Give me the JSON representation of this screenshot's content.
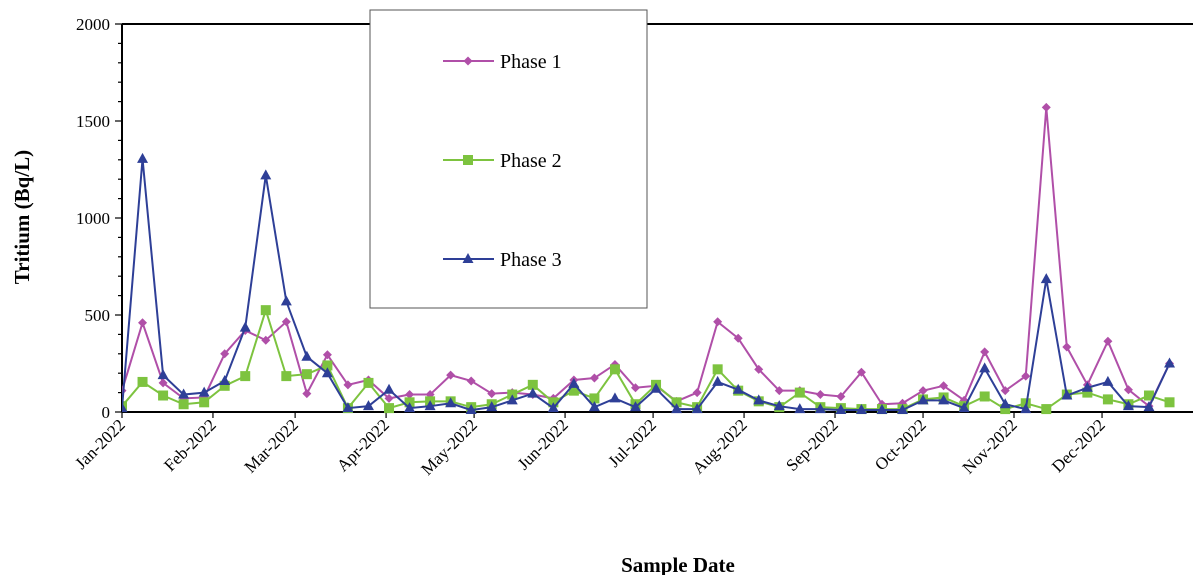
{
  "chart_data": {
    "type": "line",
    "xlabel": "Sample Date",
    "ylabel": "Tritium (Bq/L)",
    "ylim": [
      0,
      2000
    ],
    "y_ticks": [
      "0",
      "500",
      "1000",
      "1500",
      "2000"
    ],
    "x_tick_labels": [
      "Jan-2022",
      "Feb-2022",
      "Mar-2022",
      "Apr-2022",
      "May-2022",
      "Jun-2022",
      "Jul-2022",
      "Aug-2022",
      "Sep-2022",
      "Oct-2022",
      "Nov-2022",
      "Dec-2022"
    ],
    "x_range": [
      "2022-01-01",
      "2022-12-31"
    ],
    "grid": false,
    "legend_position": "top-center",
    "series": [
      {
        "name": "Phase 1",
        "color": "#b04fa8",
        "marker": "diamond",
        "points": [
          [
            "2022-01-01",
            110
          ],
          [
            "2022-01-08",
            460
          ],
          [
            "2022-01-15",
            150
          ],
          [
            "2022-01-22",
            70
          ],
          [
            "2022-01-29",
            75
          ],
          [
            "2022-02-05",
            300
          ],
          [
            "2022-02-12",
            420
          ],
          [
            "2022-02-19",
            370
          ],
          [
            "2022-02-26",
            465
          ],
          [
            "2022-03-05",
            95
          ],
          [
            "2022-03-12",
            295
          ],
          [
            "2022-03-19",
            140
          ],
          [
            "2022-03-26",
            165
          ],
          [
            "2022-04-02",
            70
          ],
          [
            "2022-04-09",
            90
          ],
          [
            "2022-04-16",
            90
          ],
          [
            "2022-04-23",
            190
          ],
          [
            "2022-04-30",
            160
          ],
          [
            "2022-05-07",
            95
          ],
          [
            "2022-05-14",
            100
          ],
          [
            "2022-05-21",
            90
          ],
          [
            "2022-05-28",
            70
          ],
          [
            "2022-06-04",
            165
          ],
          [
            "2022-06-11",
            175
          ],
          [
            "2022-06-18",
            245
          ],
          [
            "2022-06-25",
            125
          ],
          [
            "2022-07-02",
            135
          ],
          [
            "2022-07-09",
            55
          ],
          [
            "2022-07-16",
            100
          ],
          [
            "2022-07-23",
            465
          ],
          [
            "2022-07-30",
            380
          ],
          [
            "2022-08-06",
            220
          ],
          [
            "2022-08-13",
            110
          ],
          [
            "2022-08-20",
            110
          ],
          [
            "2022-08-27",
            90
          ],
          [
            "2022-09-03",
            80
          ],
          [
            "2022-09-10",
            205
          ],
          [
            "2022-09-17",
            40
          ],
          [
            "2022-09-24",
            45
          ],
          [
            "2022-10-01",
            110
          ],
          [
            "2022-10-08",
            135
          ],
          [
            "2022-10-15",
            60
          ],
          [
            "2022-10-22",
            310
          ],
          [
            "2022-10-29",
            110
          ],
          [
            "2022-11-05",
            185
          ],
          [
            "2022-11-12",
            1570
          ],
          [
            "2022-11-19",
            335
          ],
          [
            "2022-11-26",
            140
          ],
          [
            "2022-12-03",
            365
          ],
          [
            "2022-12-10",
            115
          ],
          [
            "2022-12-17",
            30
          ],
          [
            "2022-12-24",
            250
          ]
        ]
      },
      {
        "name": "Phase 2",
        "color": "#7dc33f",
        "marker": "square",
        "points": [
          [
            "2022-01-01",
            30
          ],
          [
            "2022-01-08",
            155
          ],
          [
            "2022-01-15",
            85
          ],
          [
            "2022-01-22",
            40
          ],
          [
            "2022-01-29",
            50
          ],
          [
            "2022-02-05",
            135
          ],
          [
            "2022-02-12",
            185
          ],
          [
            "2022-02-19",
            525
          ],
          [
            "2022-02-26",
            185
          ],
          [
            "2022-03-05",
            195
          ],
          [
            "2022-03-12",
            240
          ],
          [
            "2022-03-19",
            20
          ],
          [
            "2022-03-26",
            150
          ],
          [
            "2022-04-02",
            20
          ],
          [
            "2022-04-09",
            50
          ],
          [
            "2022-04-16",
            55
          ],
          [
            "2022-04-23",
            55
          ],
          [
            "2022-04-30",
            25
          ],
          [
            "2022-05-07",
            40
          ],
          [
            "2022-05-14",
            90
          ],
          [
            "2022-05-21",
            140
          ],
          [
            "2022-05-28",
            50
          ],
          [
            "2022-06-04",
            110
          ],
          [
            "2022-06-11",
            70
          ],
          [
            "2022-06-18",
            220
          ],
          [
            "2022-06-25",
            40
          ],
          [
            "2022-07-02",
            140
          ],
          [
            "2022-07-09",
            50
          ],
          [
            "2022-07-16",
            25
          ],
          [
            "2022-07-23",
            220
          ],
          [
            "2022-07-30",
            110
          ],
          [
            "2022-08-06",
            55
          ],
          [
            "2022-08-13",
            25
          ],
          [
            "2022-08-20",
            100
          ],
          [
            "2022-08-27",
            25
          ],
          [
            "2022-09-03",
            20
          ],
          [
            "2022-09-10",
            15
          ],
          [
            "2022-09-17",
            15
          ],
          [
            "2022-09-24",
            15
          ],
          [
            "2022-10-01",
            65
          ],
          [
            "2022-10-08",
            75
          ],
          [
            "2022-10-15",
            30
          ],
          [
            "2022-10-22",
            80
          ],
          [
            "2022-10-29",
            15
          ],
          [
            "2022-11-05",
            45
          ],
          [
            "2022-11-12",
            15
          ],
          [
            "2022-11-19",
            90
          ],
          [
            "2022-11-26",
            100
          ],
          [
            "2022-12-03",
            65
          ],
          [
            "2022-12-10",
            40
          ],
          [
            "2022-12-17",
            85
          ],
          [
            "2022-12-24",
            50
          ]
        ]
      },
      {
        "name": "Phase 3",
        "color": "#2e3f97",
        "marker": "triangle",
        "points": [
          [
            "2022-01-01",
            20
          ],
          [
            "2022-01-08",
            1305
          ],
          [
            "2022-01-15",
            190
          ],
          [
            "2022-01-22",
            90
          ],
          [
            "2022-01-29",
            100
          ],
          [
            "2022-02-05",
            160
          ],
          [
            "2022-02-12",
            435
          ],
          [
            "2022-02-19",
            1220
          ],
          [
            "2022-02-26",
            570
          ],
          [
            "2022-03-05",
            285
          ],
          [
            "2022-03-12",
            200
          ],
          [
            "2022-03-19",
            20
          ],
          [
            "2022-03-26",
            30
          ],
          [
            "2022-04-02",
            115
          ],
          [
            "2022-04-09",
            20
          ],
          [
            "2022-04-16",
            30
          ],
          [
            "2022-04-23",
            45
          ],
          [
            "2022-04-30",
            10
          ],
          [
            "2022-05-07",
            25
          ],
          [
            "2022-05-14",
            60
          ],
          [
            "2022-05-21",
            95
          ],
          [
            "2022-05-28",
            20
          ],
          [
            "2022-06-04",
            145
          ],
          [
            "2022-06-11",
            25
          ],
          [
            "2022-06-18",
            70
          ],
          [
            "2022-06-25",
            25
          ],
          [
            "2022-07-02",
            120
          ],
          [
            "2022-07-09",
            15
          ],
          [
            "2022-07-16",
            15
          ],
          [
            "2022-07-23",
            155
          ],
          [
            "2022-07-30",
            115
          ],
          [
            "2022-08-06",
            60
          ],
          [
            "2022-08-13",
            30
          ],
          [
            "2022-08-20",
            15
          ],
          [
            "2022-08-27",
            15
          ],
          [
            "2022-09-03",
            10
          ],
          [
            "2022-09-10",
            10
          ],
          [
            "2022-09-17",
            10
          ],
          [
            "2022-09-24",
            10
          ],
          [
            "2022-10-01",
            60
          ],
          [
            "2022-10-08",
            60
          ],
          [
            "2022-10-15",
            20
          ],
          [
            "2022-10-22",
            225
          ],
          [
            "2022-10-29",
            40
          ],
          [
            "2022-11-05",
            15
          ],
          [
            "2022-11-12",
            685
          ],
          [
            "2022-11-19",
            85
          ],
          [
            "2022-11-26",
            125
          ],
          [
            "2022-12-03",
            155
          ],
          [
            "2022-12-10",
            30
          ],
          [
            "2022-12-17",
            25
          ],
          [
            "2022-12-24",
            250
          ]
        ]
      }
    ]
  }
}
